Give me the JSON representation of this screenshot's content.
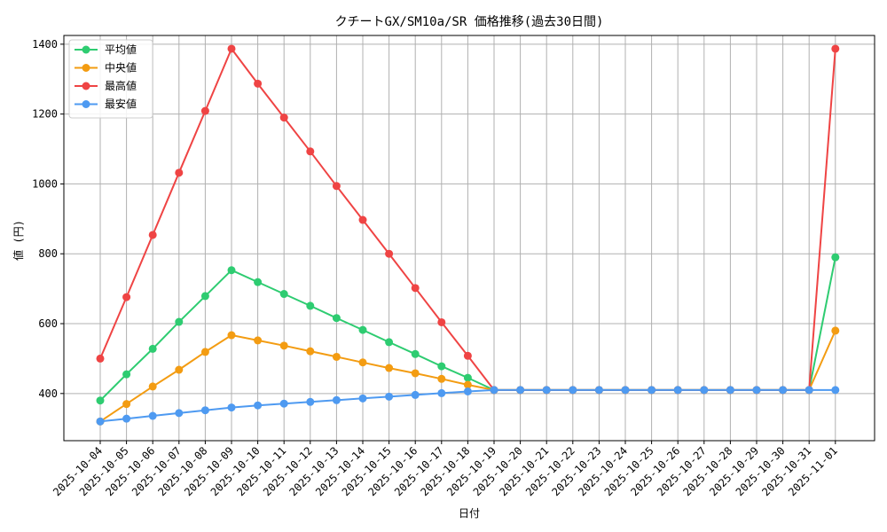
{
  "chart_data": {
    "type": "line",
    "title": "クチートGX/SM10a/SR 価格推移(過去30日間)",
    "xlabel": "日付",
    "ylabel": "値 (円)",
    "ylim": [
      265,
      1425
    ],
    "yticks": [
      400,
      600,
      800,
      1000,
      1200,
      1400
    ],
    "grid": true,
    "legend_position": "top-left",
    "x": [
      "2025-10-04",
      "2025-10-05",
      "2025-10-06",
      "2025-10-07",
      "2025-10-08",
      "2025-10-09",
      "2025-10-10",
      "2025-10-11",
      "2025-10-12",
      "2025-10-13",
      "2025-10-14",
      "2025-10-15",
      "2025-10-16",
      "2025-10-17",
      "2025-10-18",
      "2025-10-19",
      "2025-10-20",
      "2025-10-21",
      "2025-10-22",
      "2025-10-23",
      "2025-10-24",
      "2025-10-25",
      "2025-10-26",
      "2025-10-27",
      "2025-10-28",
      "2025-10-29",
      "2025-10-30",
      "2025-10-31",
      "2025-11-01"
    ],
    "series": [
      {
        "name": "平均値",
        "color": "#2ecc71",
        "values": [
          380,
          455,
          528,
          605,
          679,
          753,
          719,
          685,
          651,
          616,
          582,
          547,
          513,
          478,
          445,
          410,
          410,
          410,
          410,
          410,
          410,
          410,
          410,
          410,
          410,
          410,
          410,
          410,
          790
        ]
      },
      {
        "name": "中央値",
        "color": "#f39c12",
        "values": [
          320,
          370,
          420,
          468,
          519,
          567,
          552,
          537,
          521,
          505,
          489,
          473,
          458,
          442,
          425,
          410,
          410,
          410,
          410,
          410,
          410,
          410,
          410,
          410,
          410,
          410,
          410,
          410,
          580
        ]
      },
      {
        "name": "最高値",
        "color": "#ef4444",
        "values": [
          500,
          676,
          854,
          1032,
          1209,
          1387,
          1287,
          1190,
          1093,
          994,
          897,
          800,
          702,
          604,
          508,
          410,
          410,
          410,
          410,
          410,
          410,
          410,
          410,
          410,
          410,
          410,
          410,
          410,
          1387
        ]
      },
      {
        "name": "最安値",
        "color": "#4e9af1",
        "values": [
          320,
          328,
          336,
          344,
          352,
          360,
          366,
          371,
          376,
          381,
          386,
          391,
          396,
          401,
          406,
          410,
          410,
          410,
          410,
          410,
          410,
          410,
          410,
          410,
          410,
          410,
          410,
          410,
          410
        ]
      }
    ]
  }
}
